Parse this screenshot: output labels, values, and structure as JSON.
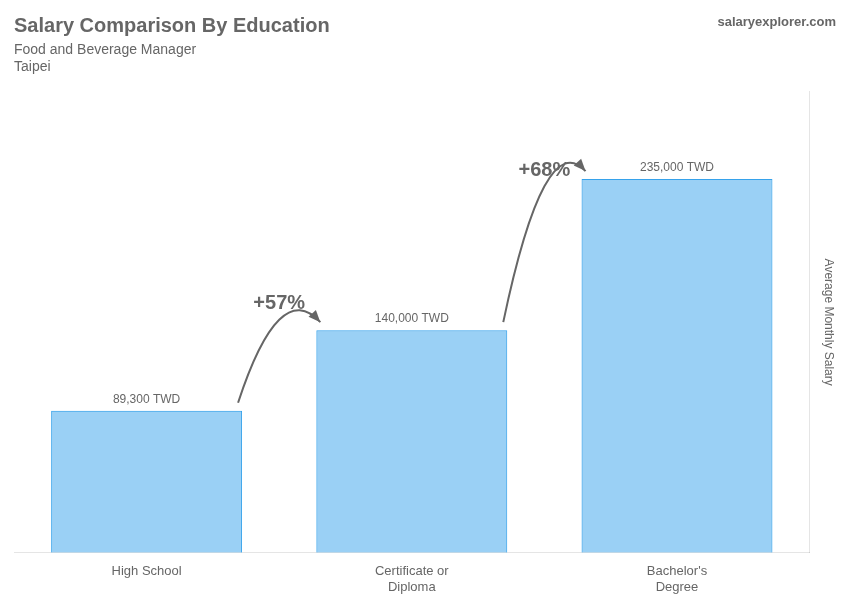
{
  "chart_data": {
    "type": "bar",
    "title": "Salary Comparison By Education",
    "subtitle": [
      "Food and Beverage Manager",
      "Taipei"
    ],
    "ylabel": "Average Monthly Salary",
    "categories": [
      "High School",
      "Certificate or\nDiploma",
      "Bachelor's\nDegree"
    ],
    "values": [
      89300,
      140000,
      235000
    ],
    "value_labels": [
      "89,300 TWD",
      "140,000 TWD",
      "235,000 TWD"
    ],
    "data_labels": true,
    "annotations": [
      "+57%",
      "+68%",
      "salaryexplorer.com"
    ],
    "ylim": [
      0,
      290000
    ],
    "grid": false,
    "tick_labels": "x"
  }
}
